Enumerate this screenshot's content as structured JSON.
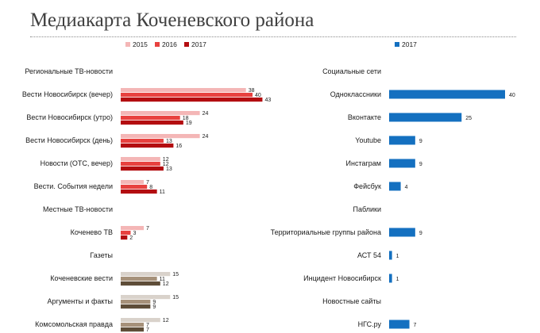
{
  "title": "Медиакарта Коченевского района",
  "chart_data": [
    {
      "type": "bar",
      "orientation": "horizontal",
      "legend": [
        "2015",
        "2016",
        "2017"
      ],
      "legend_position": "top",
      "colors": {
        "tv": [
          "#f4b6b6",
          "#e8413f",
          "#b30d10"
        ],
        "press": [
          "#d9d2cb",
          "#a6917a",
          "#5e4d38"
        ]
      },
      "rows": [
        {
          "label": "Региональные ТВ-новости",
          "header": true
        },
        {
          "label": "Вести Новосибирск (вечер)",
          "group": "tv",
          "values": [
            38,
            40,
            43
          ]
        },
        {
          "label": "Вести Новосибирск (утро)",
          "group": "tv",
          "values": [
            24,
            18,
            19
          ]
        },
        {
          "label": "Вести Новосибирск (день)",
          "group": "tv",
          "values": [
            24,
            13,
            16
          ]
        },
        {
          "label": "Новости (ОТС, вечер)",
          "group": "tv",
          "values": [
            12,
            12,
            13
          ]
        },
        {
          "label": "Вести. События недели",
          "group": "tv",
          "values": [
            7,
            8,
            11
          ]
        },
        {
          "label": "Местные ТВ-новости",
          "header": true
        },
        {
          "label": "Коченево ТВ",
          "group": "tv",
          "values": [
            7,
            3,
            2
          ]
        },
        {
          "label": "Газеты",
          "header": true
        },
        {
          "label": "Коченевские вести",
          "group": "press",
          "values": [
            15,
            11,
            12
          ]
        },
        {
          "label": "Аргументы и факты",
          "group": "press",
          "values": [
            15,
            9,
            9
          ]
        },
        {
          "label": "Комсомольская правда",
          "group": "press",
          "values": [
            12,
            7,
            7
          ]
        }
      ]
    },
    {
      "type": "bar",
      "orientation": "horizontal",
      "legend": [
        "2017"
      ],
      "legend_position": "top",
      "color": "#1470c0",
      "rows": [
        {
          "label": "Социальные сети",
          "header": true
        },
        {
          "label": "Одноклассники",
          "value": 40
        },
        {
          "label": "Вконтакте",
          "value": 25
        },
        {
          "label": "Youtube",
          "value": 9
        },
        {
          "label": "Инстаграм",
          "value": 9
        },
        {
          "label": "Фейсбук",
          "value": 4
        },
        {
          "label": "Паблики",
          "header": true
        },
        {
          "label": "Территориальные группы района",
          "value": 9
        },
        {
          "label": "АСТ 54",
          "value": 1
        },
        {
          "label": "Инцидент Новосибирск",
          "value": 1
        },
        {
          "label": "Новостные сайты",
          "header": true
        },
        {
          "label": "НГС.ру",
          "value": 7
        }
      ]
    }
  ]
}
